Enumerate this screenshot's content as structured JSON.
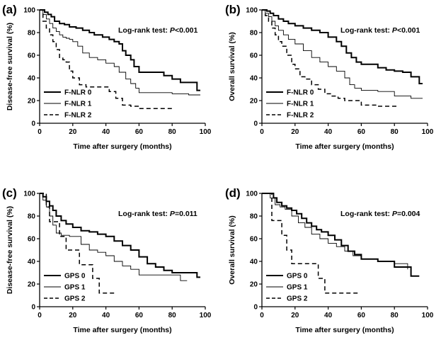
{
  "chart_data": [
    {
      "type": "line",
      "panel_label": "(a)",
      "xlabel": "Time after surgery (months)",
      "ylabel": "Disease-free survival (%)",
      "xlim": [
        0,
        100
      ],
      "ylim": [
        0,
        100
      ],
      "xticks": [
        0,
        20,
        40,
        60,
        80,
        100
      ],
      "yticks": [
        0,
        20,
        40,
        60,
        80,
        100
      ],
      "annotation": {
        "prefix": "Log-rank test: ",
        "p": "P",
        "suffix": "<0.001"
      },
      "legend_position": "bottom-left",
      "series": [
        {
          "name": "F-NLR 0",
          "style": "thick",
          "x": [
            0,
            3,
            5,
            7,
            9,
            12,
            15,
            18,
            22,
            26,
            30,
            33,
            38,
            42,
            45,
            48,
            50,
            52,
            55,
            57,
            60,
            65,
            70,
            75,
            80,
            85,
            90,
            95,
            97
          ],
          "y": [
            100,
            98,
            96,
            94,
            90,
            88,
            87,
            85,
            84,
            82,
            80,
            78,
            76,
            74,
            72,
            70,
            64,
            60,
            56,
            50,
            45,
            45,
            45,
            42,
            39,
            36,
            36,
            29,
            29
          ]
        },
        {
          "name": "F-NLR 1",
          "style": "thin",
          "x": [
            0,
            2,
            4,
            6,
            8,
            10,
            12,
            14,
            16,
            18,
            20,
            23,
            26,
            30,
            35,
            40,
            45,
            48,
            52,
            55,
            58,
            60,
            70,
            80,
            90,
            97
          ],
          "y": [
            100,
            96,
            92,
            88,
            84,
            81,
            78,
            76,
            75,
            74,
            72,
            68,
            62,
            58,
            56,
            53,
            50,
            45,
            39,
            35,
            31,
            27,
            27,
            26,
            25,
            25
          ]
        },
        {
          "name": "F-NLR 2",
          "style": "dashed",
          "x": [
            0,
            2,
            4,
            6,
            8,
            10,
            12,
            14,
            16,
            18,
            20,
            24,
            28,
            32,
            38,
            42,
            46,
            50,
            55,
            60,
            70,
            80
          ],
          "y": [
            100,
            90,
            84,
            78,
            72,
            65,
            58,
            56,
            54,
            46,
            40,
            34,
            32,
            32,
            32,
            28,
            22,
            16,
            15,
            13,
            13,
            13
          ]
        }
      ]
    },
    {
      "type": "line",
      "panel_label": "(b)",
      "xlabel": "Time after surgery (months)",
      "ylabel": "Overall survival (%)",
      "xlim": [
        0,
        100
      ],
      "ylim": [
        0,
        100
      ],
      "xticks": [
        0,
        20,
        40,
        60,
        80,
        100
      ],
      "yticks": [
        0,
        20,
        40,
        60,
        80,
        100
      ],
      "annotation": {
        "prefix": "Log-rank test: ",
        "p": "P",
        "suffix": "<0.001"
      },
      "legend_position": "bottom-left",
      "series": [
        {
          "name": "F-NLR 0",
          "style": "thick",
          "x": [
            0,
            3,
            5,
            7,
            10,
            13,
            16,
            20,
            25,
            30,
            35,
            40,
            45,
            48,
            51,
            54,
            57,
            60,
            65,
            70,
            75,
            80,
            85,
            90,
            95,
            97
          ],
          "y": [
            100,
            99,
            97,
            95,
            92,
            90,
            88,
            86,
            84,
            82,
            80,
            76,
            72,
            68,
            62,
            58,
            54,
            52,
            52,
            49,
            47,
            46,
            45,
            41,
            35,
            35
          ]
        },
        {
          "name": "F-NLR 1",
          "style": "thin",
          "x": [
            0,
            2,
            4,
            6,
            8,
            10,
            13,
            16,
            20,
            25,
            30,
            35,
            40,
            45,
            50,
            53,
            56,
            60,
            70,
            80,
            90,
            97
          ],
          "y": [
            100,
            97,
            94,
            90,
            86,
            82,
            78,
            74,
            70,
            64,
            58,
            54,
            50,
            46,
            40,
            34,
            31,
            29,
            28,
            24,
            22,
            22
          ]
        },
        {
          "name": "F-NLR 2",
          "style": "dashed",
          "x": [
            0,
            2,
            4,
            6,
            8,
            10,
            12,
            15,
            18,
            20,
            23,
            26,
            30,
            34,
            38,
            42,
            46,
            50,
            55,
            60,
            70,
            82
          ],
          "y": [
            100,
            95,
            90,
            84,
            78,
            72,
            68,
            60,
            52,
            48,
            41,
            39,
            34,
            30,
            26,
            24,
            22,
            20,
            20,
            16,
            15,
            15
          ]
        }
      ]
    },
    {
      "type": "line",
      "panel_label": "(c)",
      "xlabel": "Time after surgery (months)",
      "ylabel": "Disease-free survival (%)",
      "xlim": [
        0,
        100
      ],
      "ylim": [
        0,
        100
      ],
      "xticks": [
        0,
        20,
        40,
        60,
        80,
        100
      ],
      "yticks": [
        0,
        20,
        40,
        60,
        80,
        100
      ],
      "annotation": {
        "prefix": "Log-rank test: ",
        "p": "P",
        "suffix": "=0.011"
      },
      "legend_position": "bottom-left",
      "series": [
        {
          "name": "GPS 0",
          "style": "thick",
          "x": [
            0,
            2,
            4,
            6,
            8,
            10,
            13,
            16,
            20,
            25,
            30,
            35,
            40,
            45,
            50,
            55,
            60,
            65,
            70,
            75,
            80,
            85,
            90,
            95,
            97
          ],
          "y": [
            100,
            97,
            93,
            89,
            85,
            80,
            76,
            73,
            70,
            67,
            66,
            64,
            62,
            58,
            54,
            50,
            44,
            38,
            35,
            32,
            30,
            30,
            30,
            26,
            26
          ]
        },
        {
          "name": "GPS 1",
          "style": "thin",
          "x": [
            0,
            2,
            4,
            6,
            8,
            10,
            13,
            18,
            25,
            30,
            35,
            40,
            45,
            50,
            55,
            60,
            70,
            80,
            85,
            89
          ],
          "y": [
            100,
            94,
            88,
            80,
            72,
            65,
            63,
            62,
            55,
            50,
            48,
            45,
            40,
            36,
            33,
            28,
            28,
            28,
            23,
            23
          ]
        },
        {
          "name": "GPS 2",
          "style": "dashed",
          "x": [
            0,
            4,
            6,
            8,
            12,
            16,
            20,
            24,
            28,
            32,
            36,
            40,
            46
          ],
          "y": [
            100,
            88,
            75,
            75,
            62,
            50,
            50,
            37,
            37,
            25,
            12,
            12,
            12
          ]
        }
      ]
    },
    {
      "type": "line",
      "panel_label": "(d)",
      "xlabel": "Time after surgery (months)",
      "ylabel": "Overall survival (%)",
      "xlim": [
        0,
        100
      ],
      "ylim": [
        0,
        100
      ],
      "xticks": [
        0,
        20,
        40,
        60,
        80,
        100
      ],
      "yticks": [
        0,
        20,
        40,
        60,
        80,
        100
      ],
      "annotation": {
        "prefix": "Log-rank test: ",
        "p": "P",
        "suffix": "=0.004"
      },
      "legend_position": "bottom-left",
      "series": [
        {
          "name": "GPS 0",
          "style": "thick",
          "x": [
            0,
            5,
            7,
            9,
            12,
            15,
            18,
            21,
            24,
            27,
            30,
            33,
            36,
            40,
            44,
            48,
            52,
            56,
            60,
            70,
            80,
            90,
            95
          ],
          "y": [
            100,
            100,
            96,
            92,
            89,
            87,
            85,
            82,
            78,
            74,
            71,
            68,
            66,
            63,
            59,
            54,
            49,
            46,
            42,
            40,
            35,
            27,
            27
          ]
        },
        {
          "name": "GPS 1",
          "style": "thin",
          "x": [
            0,
            5,
            8,
            11,
            14,
            18,
            22,
            26,
            30,
            35,
            40,
            45,
            50,
            55,
            60,
            70,
            80,
            88
          ],
          "y": [
            100,
            96,
            90,
            88,
            86,
            80,
            74,
            70,
            64,
            60,
            56,
            53,
            49,
            45,
            42,
            40,
            38,
            33
          ]
        },
        {
          "name": "GPS 2",
          "style": "dashed",
          "x": [
            0,
            5,
            6,
            9,
            12,
            15,
            18,
            22,
            26,
            30,
            34,
            38,
            42,
            50,
            58
          ],
          "y": [
            100,
            100,
            76,
            76,
            63,
            50,
            38,
            38,
            38,
            38,
            25,
            12,
            12,
            12,
            12
          ]
        }
      ]
    }
  ]
}
